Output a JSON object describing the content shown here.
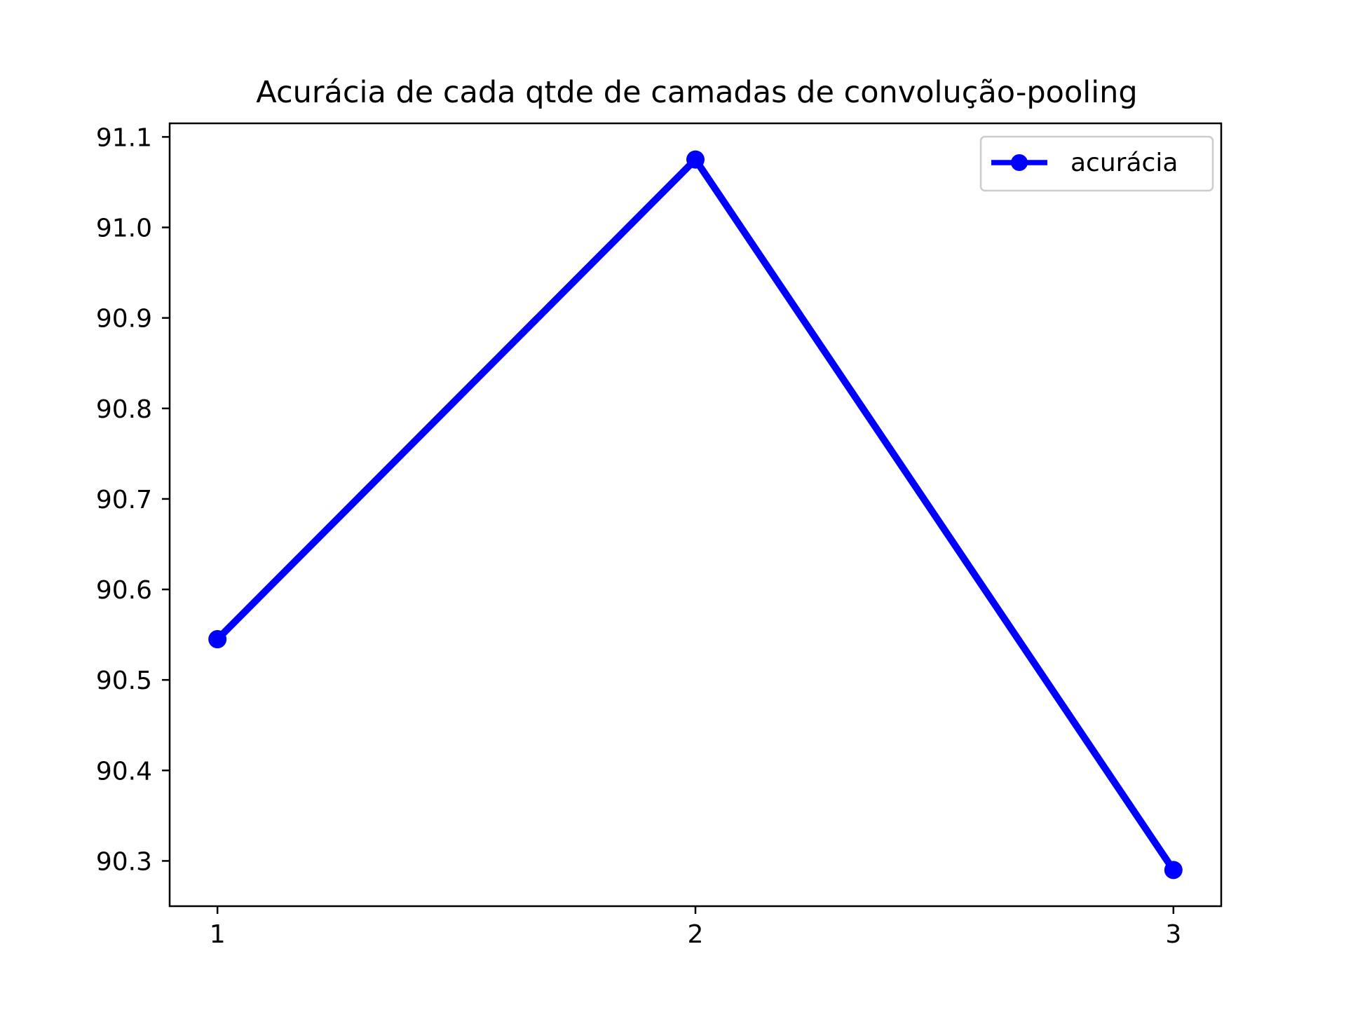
{
  "chart_data": {
    "type": "line",
    "title": "Acurácia de cada qtde de camadas de convolução-pooling",
    "xlabel": "",
    "ylabel": "",
    "x": [
      1,
      2,
      3
    ],
    "x_ticks": [
      "1",
      "2",
      "3"
    ],
    "y_ticks": [
      "90.3",
      "90.4",
      "90.5",
      "90.6",
      "90.7",
      "90.8",
      "90.9",
      "91.0",
      "91.1"
    ],
    "y_tick_values": [
      90.3,
      90.4,
      90.5,
      90.6,
      90.7,
      90.8,
      90.9,
      91.0,
      91.1
    ],
    "xlim": [
      0.9,
      3.1
    ],
    "ylim": [
      90.25,
      91.115
    ],
    "series": [
      {
        "name": "acurácia",
        "color": "#0000ff",
        "marker": "circle",
        "values": [
          90.545,
          91.075,
          90.29
        ]
      }
    ],
    "legend": {
      "position": "top-right"
    },
    "grid": false
  }
}
